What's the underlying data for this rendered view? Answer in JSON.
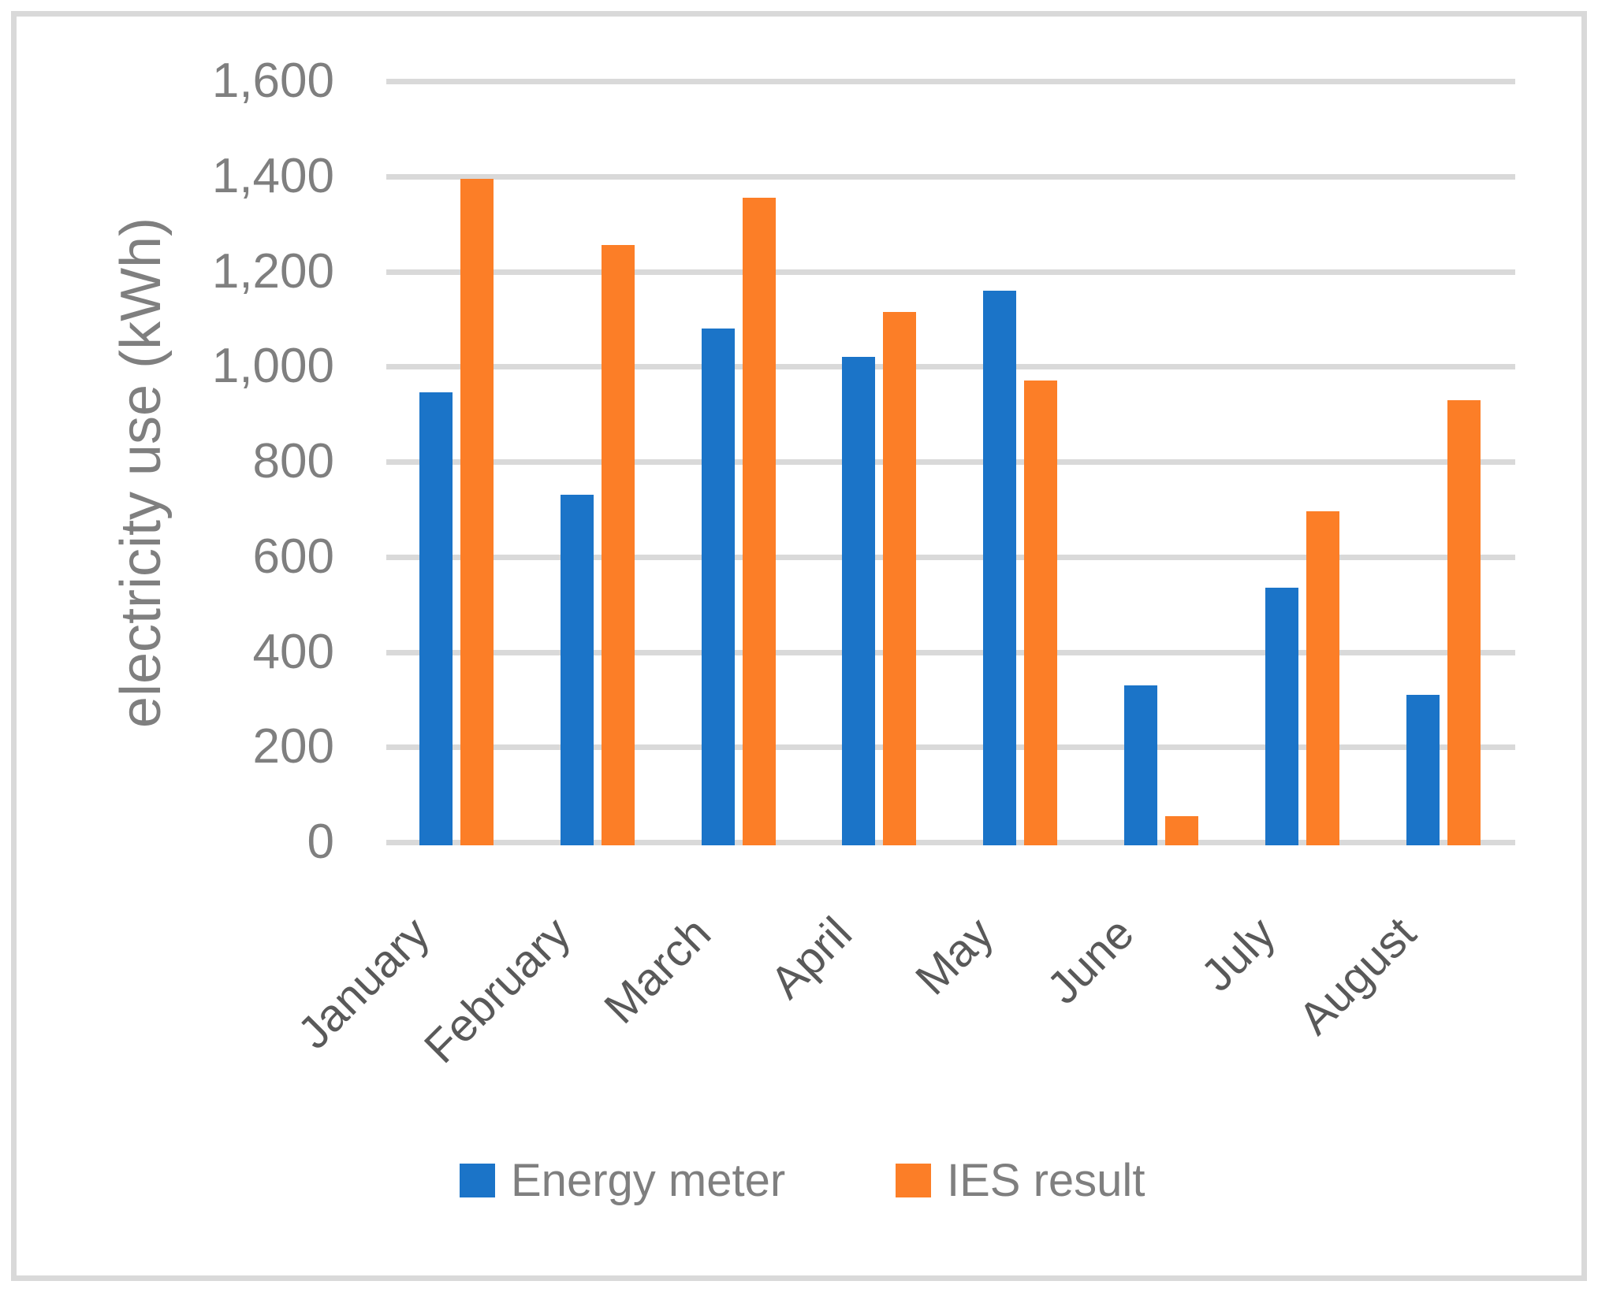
{
  "chart_data": {
    "type": "bar",
    "categories": [
      "January",
      "February",
      "March",
      "April",
      "May",
      "June",
      "July",
      "August"
    ],
    "series": [
      {
        "name": "Energy meter",
        "color": "#1B74C8",
        "values": [
          945,
          730,
          1080,
          1020,
          1160,
          330,
          535,
          310
        ]
      },
      {
        "name": "IES result",
        "color": "#FC7E27",
        "values": [
          1395,
          1255,
          1355,
          1115,
          970,
          55,
          695,
          930
        ]
      }
    ],
    "title": "",
    "xlabel": "",
    "ylabel": "electricity use (kWh)",
    "ylim": [
      0,
      1600
    ],
    "ytick_step": 200,
    "ytick_labels": [
      "0",
      "200",
      "400",
      "600",
      "800",
      "1,000",
      "1,200",
      "1,400",
      "1,600"
    ],
    "grid": true,
    "legend_position": "bottom-center"
  },
  "colors": {
    "gridline": "#D9D9D9",
    "border": "#D9D9D9",
    "ytick_text": "#7F7F7F",
    "ytitle_text": "#7F7F7F",
    "xlabel_text": "#595959",
    "legend_text": "#7F7F7F",
    "background": "#FFFFFF"
  }
}
